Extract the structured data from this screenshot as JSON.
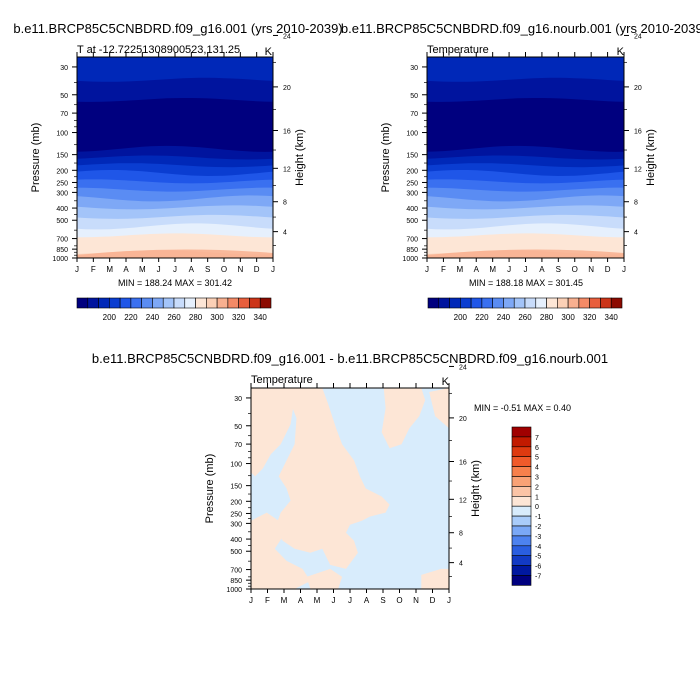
{
  "months": [
    "J",
    "F",
    "M",
    "A",
    "M",
    "J",
    "J",
    "A",
    "S",
    "O",
    "N",
    "D",
    "J"
  ],
  "pressure_ticks": [
    30,
    50,
    70,
    100,
    150,
    200,
    250,
    300,
    400,
    500,
    700,
    850,
    1000
  ],
  "height_ticks": [
    4,
    8,
    12,
    16,
    20,
    24
  ],
  "pressure_label": "Pressure (mb)",
  "height_label": "Height (km)",
  "chart_data": [
    {
      "type": "contour",
      "title": "b.e11.BRCP85C5CNBDRD.f09_g16.001 (yrs 2010-2039)",
      "subtitle_left": "T at -12.72251308900523,131.25",
      "subtitle_right": "K",
      "stats": "MIN = 188.24 MAX = 301.42",
      "xlabel": "",
      "ylabel": "Pressure (mb)",
      "ylabel_right": "Height (km)",
      "ylim": [
        1000,
        25
      ],
      "colorbar": {
        "labels": [
          200,
          220,
          240,
          260,
          280,
          300,
          320,
          340
        ],
        "levels": [
          180,
          190,
          200,
          210,
          220,
          230,
          240,
          250,
          260,
          270,
          280,
          290,
          300,
          310,
          320,
          330,
          340,
          350
        ],
        "colors": [
          "#00007f",
          "#00149e",
          "#0028b8",
          "#0a3dd1",
          "#1f56e8",
          "#3a70f0",
          "#5a8cf3",
          "#7ea8f6",
          "#a3c4f9",
          "#c8dcfb",
          "#e6f0fd",
          "#fde6d6",
          "#fbd0b6",
          "#f8b090",
          "#f48a66",
          "#e85e3c",
          "#cc3418",
          "#8c0a00"
        ]
      },
      "bands_pressure": [
        {
          "p": 25,
          "c": "#0028b8"
        },
        {
          "p": 38,
          "c": "#00149e"
        },
        {
          "p": 55,
          "c": "#00007f"
        },
        {
          "p": 135,
          "c": "#00149e"
        },
        {
          "p": 158,
          "c": "#0028b8"
        },
        {
          "p": 182,
          "c": "#0a3dd1"
        },
        {
          "p": 210,
          "c": "#1f56e8"
        },
        {
          "p": 245,
          "c": "#3a70f0"
        },
        {
          "p": 285,
          "c": "#5a8cf3"
        },
        {
          "p": 335,
          "c": "#7ea8f6"
        },
        {
          "p": 395,
          "c": "#a3c4f9"
        },
        {
          "p": 470,
          "c": "#c8dcfb"
        },
        {
          "p": 560,
          "c": "#e6f0fd"
        },
        {
          "p": 660,
          "c": "#fde6d6"
        },
        {
          "p": 900,
          "c": "#fbd0b6"
        }
      ]
    },
    {
      "type": "contour",
      "title": "b.e11.BRCP85C5CNBDRD.f09_g16.nourb.001 (yrs 2010-2039)",
      "subtitle_left": "Temperature",
      "subtitle_right": "K",
      "stats": "MIN = 188.18 MAX = 301.45",
      "xlabel": "",
      "ylabel": "Pressure (mb)",
      "ylabel_right": "Height (km)",
      "ylim": [
        1000,
        25
      ]
    },
    {
      "type": "contour",
      "title": "b.e11.BRCP85C5CNBDRD.f09_g16.001 - b.e11.BRCP85C5CNBDRD.f09_g16.nourb.001",
      "subtitle_left": "Temperature",
      "subtitle_right": "K",
      "stats": "MIN =  -0.51 MAX =   0.40",
      "xlabel": "",
      "ylabel": "Pressure (mb)",
      "ylabel_right": "Height (km)",
      "ylim": [
        1000,
        25
      ],
      "colorbar": {
        "labels": [
          7,
          6,
          5,
          4,
          3,
          2,
          1,
          0,
          -1,
          -2,
          -3,
          -4,
          -5,
          -6,
          -7
        ],
        "colors": [
          "#a00000",
          "#c21a00",
          "#de3a10",
          "#f05a2a",
          "#f7804c",
          "#f9a276",
          "#fbc4a6",
          "#fde6d6",
          "#d8ecfc",
          "#a9ccfa",
          "#7aa8f6",
          "#4d82ef",
          "#2a5ee0",
          "#123ac4",
          "#0018a0",
          "#00007f"
        ]
      },
      "pos_color": "#fde6d6",
      "neg_color": "#d8ecfc"
    }
  ]
}
